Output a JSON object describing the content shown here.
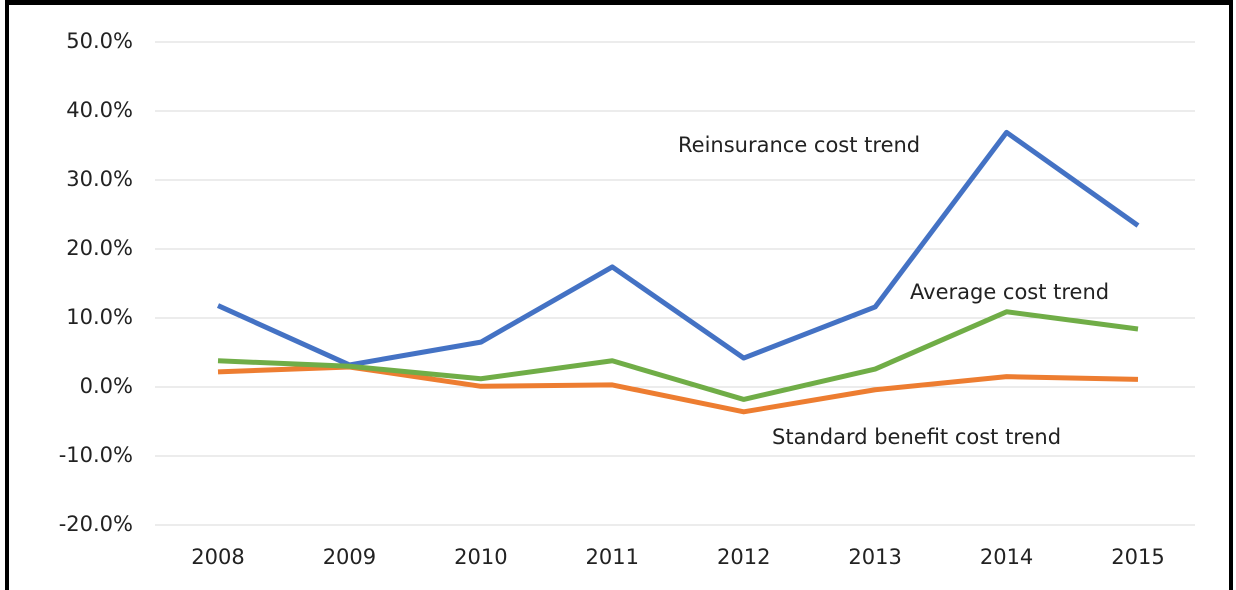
{
  "chart_data": {
    "type": "line",
    "categories": [
      "2008",
      "2009",
      "2010",
      "2011",
      "2012",
      "2013",
      "2014",
      "2015"
    ],
    "series": [
      {
        "name": "Reinsurance  cost trend",
        "color": "#4472c4",
        "values": [
          11.8,
          3.2,
          6.5,
          17.4,
          4.2,
          11.6,
          36.9,
          23.4
        ]
      },
      {
        "name": "Standard  benefit cost trend",
        "color": "#ed7d31",
        "values": [
          2.2,
          2.9,
          0.1,
          0.3,
          -3.6,
          -0.4,
          1.5,
          1.1
        ]
      },
      {
        "name": "Average  cost trend",
        "color": "#70ad47",
        "values": [
          3.8,
          3.0,
          1.2,
          3.8,
          -1.8,
          2.6,
          10.9,
          8.4
        ]
      }
    ],
    "ylim": [
      -20,
      50
    ],
    "yticks": [
      {
        "value": -20,
        "label": "-20.0%"
      },
      {
        "value": -10,
        "label": "-10.0%"
      },
      {
        "value": 0,
        "label": "0.0%"
      },
      {
        "value": 10,
        "label": "10.0%"
      },
      {
        "value": 20,
        "label": "20.0%"
      },
      {
        "value": 30,
        "label": "30.0%"
      },
      {
        "value": 40,
        "label": "40.0%"
      },
      {
        "value": 50,
        "label": "50.0%"
      }
    ],
    "grid": true
  }
}
